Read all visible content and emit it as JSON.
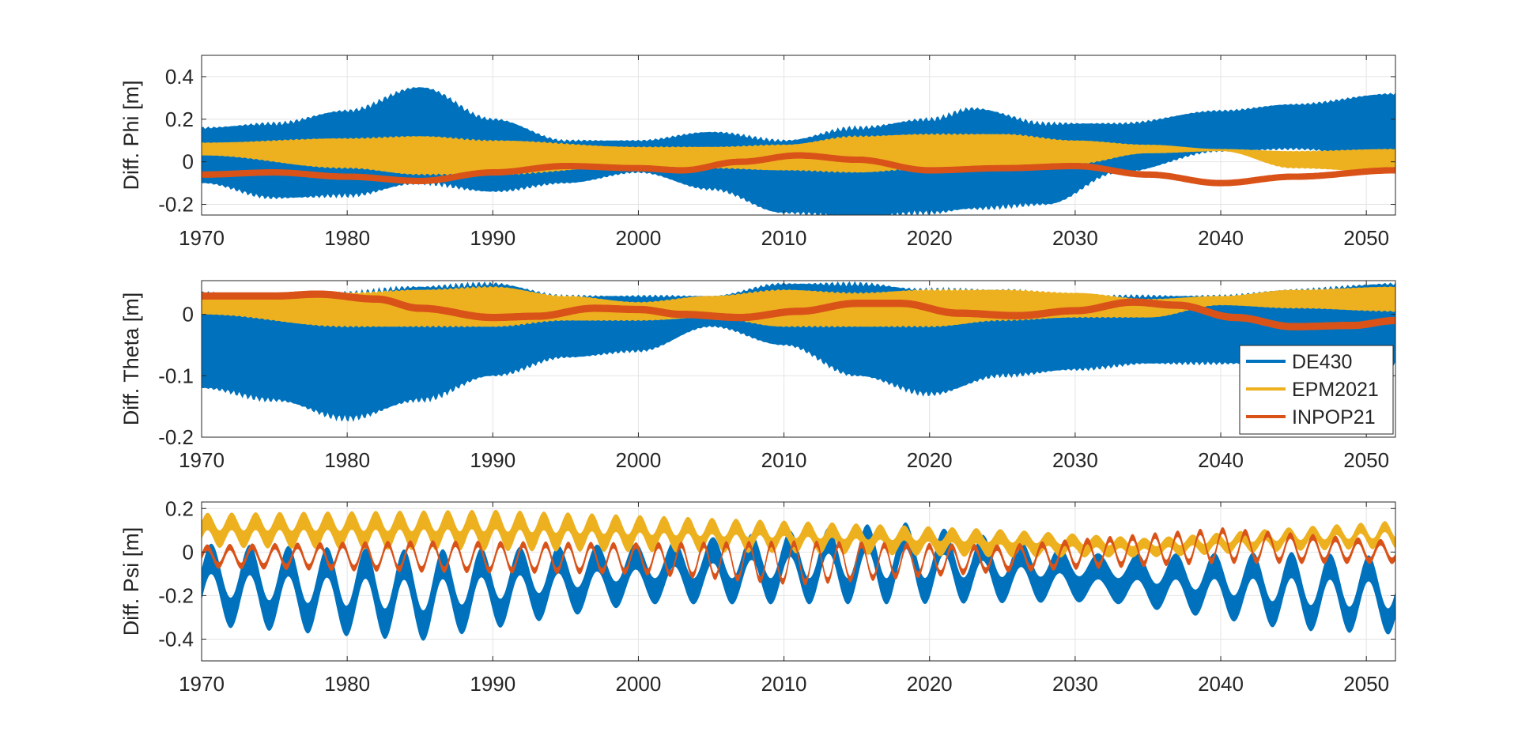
{
  "chart_data": [
    {
      "type": "line",
      "ylabel": "Diff. Phi [m]",
      "xlim": [
        1970,
        2052
      ],
      "ylim": [
        -0.25,
        0.5
      ],
      "xticks": [
        1970,
        1980,
        1990,
        2000,
        2010,
        2020,
        2030,
        2040,
        2050
      ],
      "yticks": [
        -0.2,
        0,
        0.2,
        0.4
      ],
      "ytick_labels": [
        "-0.2",
        "0",
        "0.2",
        "0.4"
      ],
      "grid": true,
      "series": [
        {
          "name": "DE430",
          "color": "#0072BD",
          "kind": "band",
          "x": [
            1970,
            1975,
            1980,
            1985,
            1990,
            1995,
            2000,
            2005,
            2010,
            2015,
            2020,
            2023,
            2028,
            2033,
            2040,
            2045,
            2052
          ],
          "upper": [
            0.16,
            0.18,
            0.24,
            0.35,
            0.2,
            0.1,
            0.1,
            0.14,
            0.1,
            0.16,
            0.2,
            0.25,
            0.18,
            0.18,
            0.24,
            0.27,
            0.32
          ],
          "lower": [
            -0.1,
            -0.17,
            -0.16,
            -0.1,
            -0.14,
            -0.1,
            -0.05,
            -0.13,
            -0.24,
            -0.26,
            -0.24,
            -0.22,
            -0.2,
            -0.05,
            0.05,
            0.06,
            0.02
          ]
        },
        {
          "name": "EPM2021",
          "color": "#EDB120",
          "kind": "band",
          "x": [
            1970,
            1980,
            1985,
            1990,
            2000,
            2005,
            2010,
            2015,
            2020,
            2025,
            2030,
            2035,
            2040,
            2045,
            2052
          ],
          "upper": [
            0.09,
            0.11,
            0.12,
            0.1,
            0.07,
            0.07,
            0.08,
            0.12,
            0.13,
            0.13,
            0.1,
            0.08,
            0.06,
            0.05,
            0.06
          ],
          "lower": [
            0.03,
            -0.03,
            -0.06,
            -0.06,
            -0.02,
            -0.03,
            -0.04,
            -0.05,
            -0.03,
            -0.03,
            -0.01,
            0.04,
            0.05,
            -0.03,
            -0.05
          ]
        },
        {
          "name": "INPOP21",
          "color": "#D95319",
          "kind": "line",
          "width": 0.03,
          "x": [
            1970,
            1975,
            1980,
            1985,
            1990,
            1995,
            2000,
            2003,
            2007,
            2011,
            2015,
            2020,
            2025,
            2030,
            2035,
            2040,
            2045,
            2052
          ],
          "values": [
            -0.06,
            -0.05,
            -0.07,
            -0.09,
            -0.05,
            -0.02,
            -0.03,
            -0.04,
            0.0,
            0.03,
            0.01,
            -0.04,
            -0.03,
            -0.02,
            -0.06,
            -0.1,
            -0.07,
            -0.04
          ]
        }
      ]
    },
    {
      "type": "line",
      "ylabel": "Diff. Theta [m]",
      "xlim": [
        1970,
        2052
      ],
      "ylim": [
        -0.2,
        0.055
      ],
      "xticks": [
        1970,
        1980,
        1990,
        2000,
        2010,
        2020,
        2030,
        2040,
        2050
      ],
      "yticks": [
        -0.2,
        -0.1,
        0
      ],
      "ytick_labels": [
        "-0.2",
        "-0.1",
        "0"
      ],
      "grid": true,
      "legend": {
        "placement": "right",
        "entries": [
          "DE430",
          "EPM2021",
          "INPOP21"
        ]
      },
      "series": [
        {
          "name": "DE430",
          "color": "#0072BD",
          "kind": "band",
          "x": [
            1970,
            1975,
            1980,
            1985,
            1990,
            1995,
            2000,
            2005,
            2010,
            2015,
            2020,
            2025,
            2030,
            2035,
            2040,
            2045,
            2052
          ],
          "upper": [
            0.035,
            0.03,
            0.035,
            0.045,
            0.05,
            0.03,
            0.03,
            0.03,
            0.05,
            0.05,
            0.04,
            0.04,
            0.03,
            0.03,
            0.03,
            0.04,
            0.05
          ],
          "lower": [
            -0.12,
            -0.14,
            -0.17,
            -0.14,
            -0.1,
            -0.07,
            -0.06,
            -0.02,
            -0.05,
            -0.1,
            -0.13,
            -0.1,
            -0.09,
            -0.08,
            -0.08,
            -0.08,
            -0.08
          ]
        },
        {
          "name": "EPM2021",
          "color": "#EDB120",
          "kind": "band",
          "x": [
            1970,
            1980,
            1985,
            1990,
            1995,
            2000,
            2005,
            2010,
            2015,
            2020,
            2025,
            2030,
            2035,
            2040,
            2045,
            2052
          ],
          "upper": [
            0.03,
            0.035,
            0.04,
            0.045,
            0.03,
            0.02,
            0.03,
            0.04,
            0.035,
            0.04,
            0.04,
            0.035,
            0.025,
            0.03,
            0.04,
            0.045
          ],
          "lower": [
            0.0,
            -0.02,
            -0.02,
            -0.02,
            -0.01,
            -0.01,
            -0.005,
            -0.02,
            -0.02,
            -0.02,
            -0.01,
            -0.005,
            -0.005,
            0.015,
            0.01,
            0.005
          ]
        },
        {
          "name": "INPOP21",
          "color": "#D95319",
          "kind": "line",
          "width": 0.012,
          "x": [
            1970,
            1975,
            1978,
            1982,
            1985,
            1990,
            1993,
            1997,
            2000,
            2003,
            2007,
            2011,
            2015,
            2018,
            2022,
            2026,
            2030,
            2034,
            2037,
            2041,
            2045,
            2049,
            2052
          ],
          "values": [
            0.03,
            0.03,
            0.033,
            0.025,
            0.01,
            -0.005,
            -0.003,
            0.01,
            0.008,
            0.0,
            -0.005,
            0.005,
            0.018,
            0.018,
            0.002,
            -0.002,
            0.006,
            0.02,
            0.015,
            -0.005,
            -0.02,
            -0.018,
            -0.01
          ]
        }
      ]
    },
    {
      "type": "line",
      "ylabel": "Diff. Psi [m]",
      "xlim": [
        1970,
        2052
      ],
      "ylim": [
        -0.5,
        0.23
      ],
      "xticks": [
        1970,
        1980,
        1990,
        2000,
        2010,
        2020,
        2030,
        2040,
        2050
      ],
      "yticks": [
        -0.4,
        -0.2,
        0,
        0.2
      ],
      "ytick_labels": [
        "-0.4",
        "-0.2",
        "0",
        "0.2"
      ],
      "grid": true,
      "series": [
        {
          "name": "DE430",
          "color": "#0072BD",
          "kind": "wave",
          "x": [
            1970,
            1985,
            2000,
            2018,
            2032,
            2045,
            2052
          ],
          "center": [
            -0.15,
            -0.2,
            -0.1,
            -0.05,
            -0.12,
            -0.18,
            -0.2
          ],
          "amplitude": [
            0.12,
            0.14,
            0.08,
            0.13,
            0.05,
            0.12,
            0.12
          ],
          "thickness": [
            0.14,
            0.14,
            0.12,
            0.12,
            0.12,
            0.12,
            0.12
          ],
          "period": 2.65
        },
        {
          "name": "EPM2021",
          "color": "#EDB120",
          "kind": "wave",
          "x": [
            1970,
            1990,
            2010,
            2025,
            2035,
            2045,
            2052
          ],
          "center": [
            0.1,
            0.1,
            0.07,
            0.04,
            0.02,
            0.06,
            0.08
          ],
          "amplitude": [
            0.04,
            0.05,
            0.04,
            0.03,
            0.02,
            0.03,
            0.04
          ],
          "thickness": [
            0.08,
            0.09,
            0.07,
            0.07,
            0.05,
            0.05,
            0.05
          ],
          "period": 1.65
        },
        {
          "name": "INPOP21",
          "color": "#D95319",
          "kind": "wave",
          "x": [
            1970,
            1985,
            2000,
            2011,
            2025,
            2040,
            2052
          ],
          "center": [
            -0.02,
            -0.02,
            -0.03,
            -0.05,
            -0.03,
            0.03,
            0.0
          ],
          "amplitude": [
            0.04,
            0.06,
            0.06,
            0.09,
            0.05,
            0.07,
            0.04
          ],
          "thickness": [
            0.03,
            0.03,
            0.03,
            0.03,
            0.03,
            0.03,
            0.03
          ],
          "period": 1.55
        }
      ]
    }
  ]
}
